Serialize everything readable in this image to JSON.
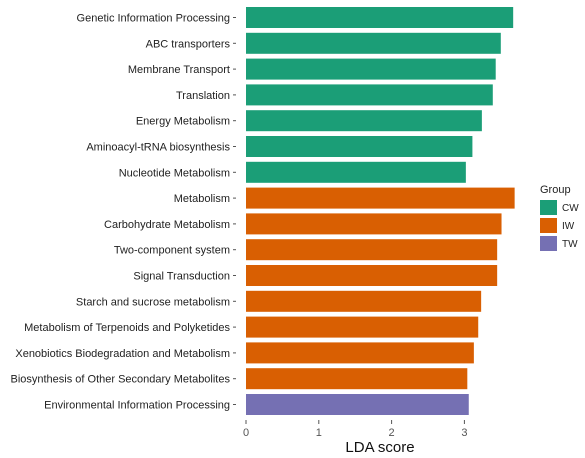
{
  "chart_data": {
    "type": "bar",
    "orientation": "horizontal",
    "categories": [
      "Genetic Information Processing",
      "ABC transporters",
      "Membrane Transport",
      "Translation",
      "Energy Metabolism",
      "Aminoacyl-tRNA biosynthesis",
      "Nucleotide Metabolism",
      "Metabolism",
      "Carbohydrate Metabolism",
      "Two-component system",
      "Signal Transduction",
      "Starch and sucrose metabolism",
      "Metabolism of Terpenoids and Polyketides",
      "Xenobiotics Biodegradation and Metabolism",
      "Biosynthesis of Other Secondary Metabolites",
      "Environmental Information Processing"
    ],
    "values": [
      3.67,
      3.5,
      3.43,
      3.39,
      3.24,
      3.11,
      3.02,
      3.69,
      3.51,
      3.45,
      3.45,
      3.23,
      3.19,
      3.13,
      3.04,
      3.06
    ],
    "groups": [
      "CW",
      "CW",
      "CW",
      "CW",
      "CW",
      "CW",
      "CW",
      "IW",
      "IW",
      "IW",
      "IW",
      "IW",
      "IW",
      "IW",
      "IW",
      "TW"
    ],
    "xlabel": "LDA score",
    "xlim": [
      0,
      3.75
    ],
    "xticks": [
      "0",
      "1",
      "2",
      "3"
    ],
    "legend": {
      "title": "Group",
      "position": "right",
      "entries": [
        {
          "name": "CW",
          "color": "#1b9e77"
        },
        {
          "name": "IW",
          "color": "#d95f02"
        },
        {
          "name": "TW",
          "color": "#7570b3"
        }
      ]
    },
    "grid": false
  }
}
